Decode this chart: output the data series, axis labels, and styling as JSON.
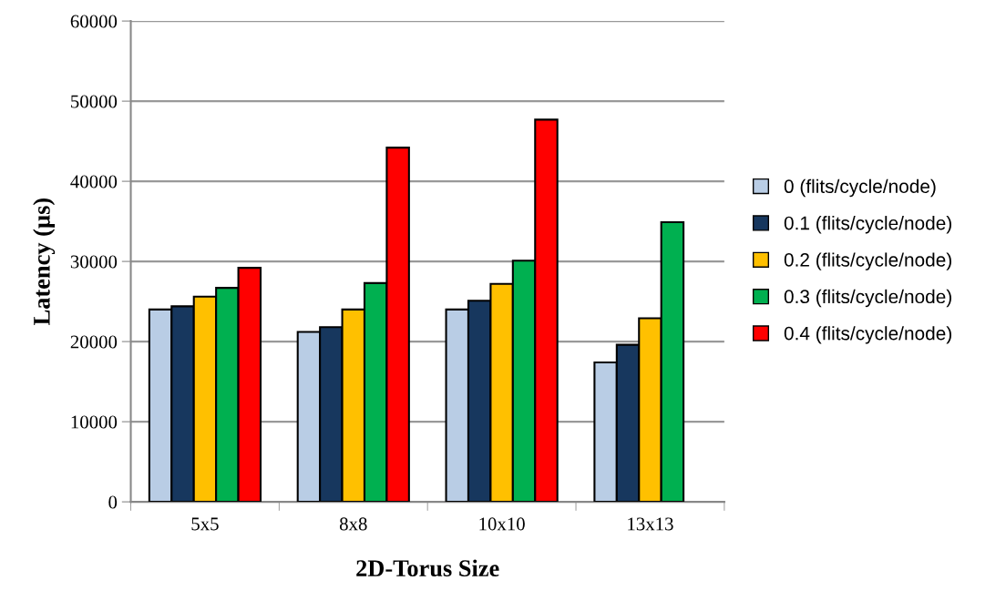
{
  "chart_data": {
    "type": "bar",
    "xlabel": "2D-Torus Size",
    "ylabel": "Latency (µs)",
    "categories": [
      "5x5",
      "8x8",
      "10x10",
      "13x13"
    ],
    "series": [
      {
        "name": "0 (flits/cycle/node)",
        "color": "#b9cde5",
        "values": [
          24000,
          21200,
          24000,
          17400
        ]
      },
      {
        "name": "0.1 (flits/cycle/node)",
        "color": "#17375e",
        "values": [
          24400,
          21800,
          25100,
          19600
        ]
      },
      {
        "name": "0.2 (flits/cycle/node)",
        "color": "#ffc000",
        "values": [
          25600,
          24000,
          27200,
          22900
        ]
      },
      {
        "name": "0.3 (flits/cycle/node)",
        "color": "#00b050",
        "values": [
          26700,
          27300,
          30100,
          34900
        ]
      },
      {
        "name": "0.4 (flits/cycle/node)",
        "color": "#ff0000",
        "values": [
          29200,
          44200,
          47700,
          null
        ]
      }
    ],
    "ylim": [
      0,
      60000
    ],
    "yticks": [
      0,
      10000,
      20000,
      30000,
      40000,
      50000,
      60000
    ],
    "grid": "y",
    "legend": "right"
  }
}
